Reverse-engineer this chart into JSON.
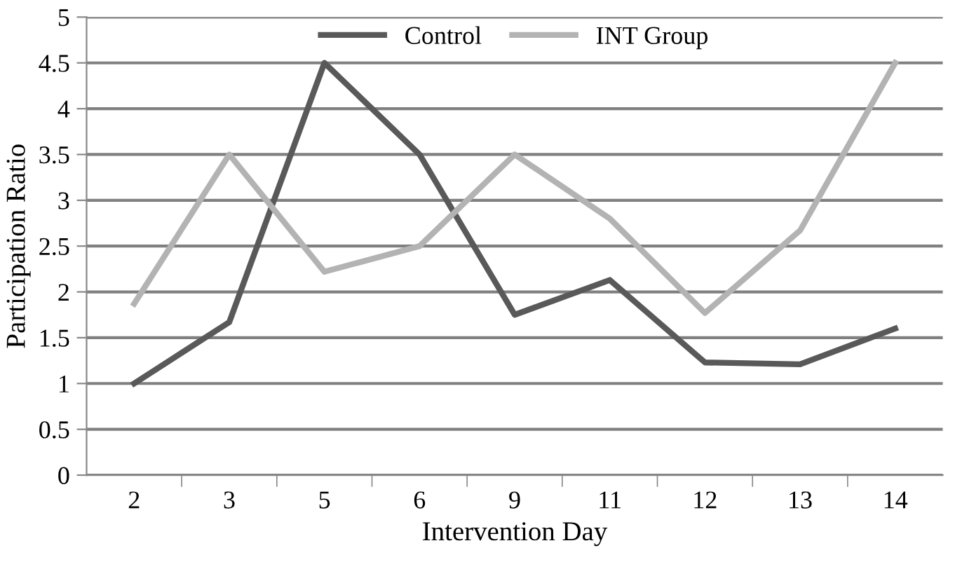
{
  "chart_data": {
    "type": "line",
    "xlabel": "Intervention Day",
    "ylabel": "Participation Ratio",
    "categories": [
      "2",
      "3",
      "5",
      "6",
      "9",
      "11",
      "12",
      "13",
      "14"
    ],
    "series": [
      {
        "name": "Control",
        "color": "#595959",
        "values": [
          1.0,
          1.67,
          4.5,
          3.5,
          1.75,
          2.13,
          1.23,
          1.21,
          1.6
        ]
      },
      {
        "name": "INT Group",
        "color": "#b3b3b3",
        "values": [
          1.87,
          3.5,
          2.22,
          2.5,
          3.5,
          2.8,
          1.77,
          2.67,
          4.5
        ]
      }
    ],
    "ylim": [
      0,
      5
    ],
    "yticks": [
      0,
      0.5,
      1,
      1.5,
      2,
      2.5,
      3,
      3.5,
      4,
      4.5,
      5
    ],
    "grid": "y",
    "legend": "top",
    "marker": "none",
    "line_style": "solid"
  }
}
